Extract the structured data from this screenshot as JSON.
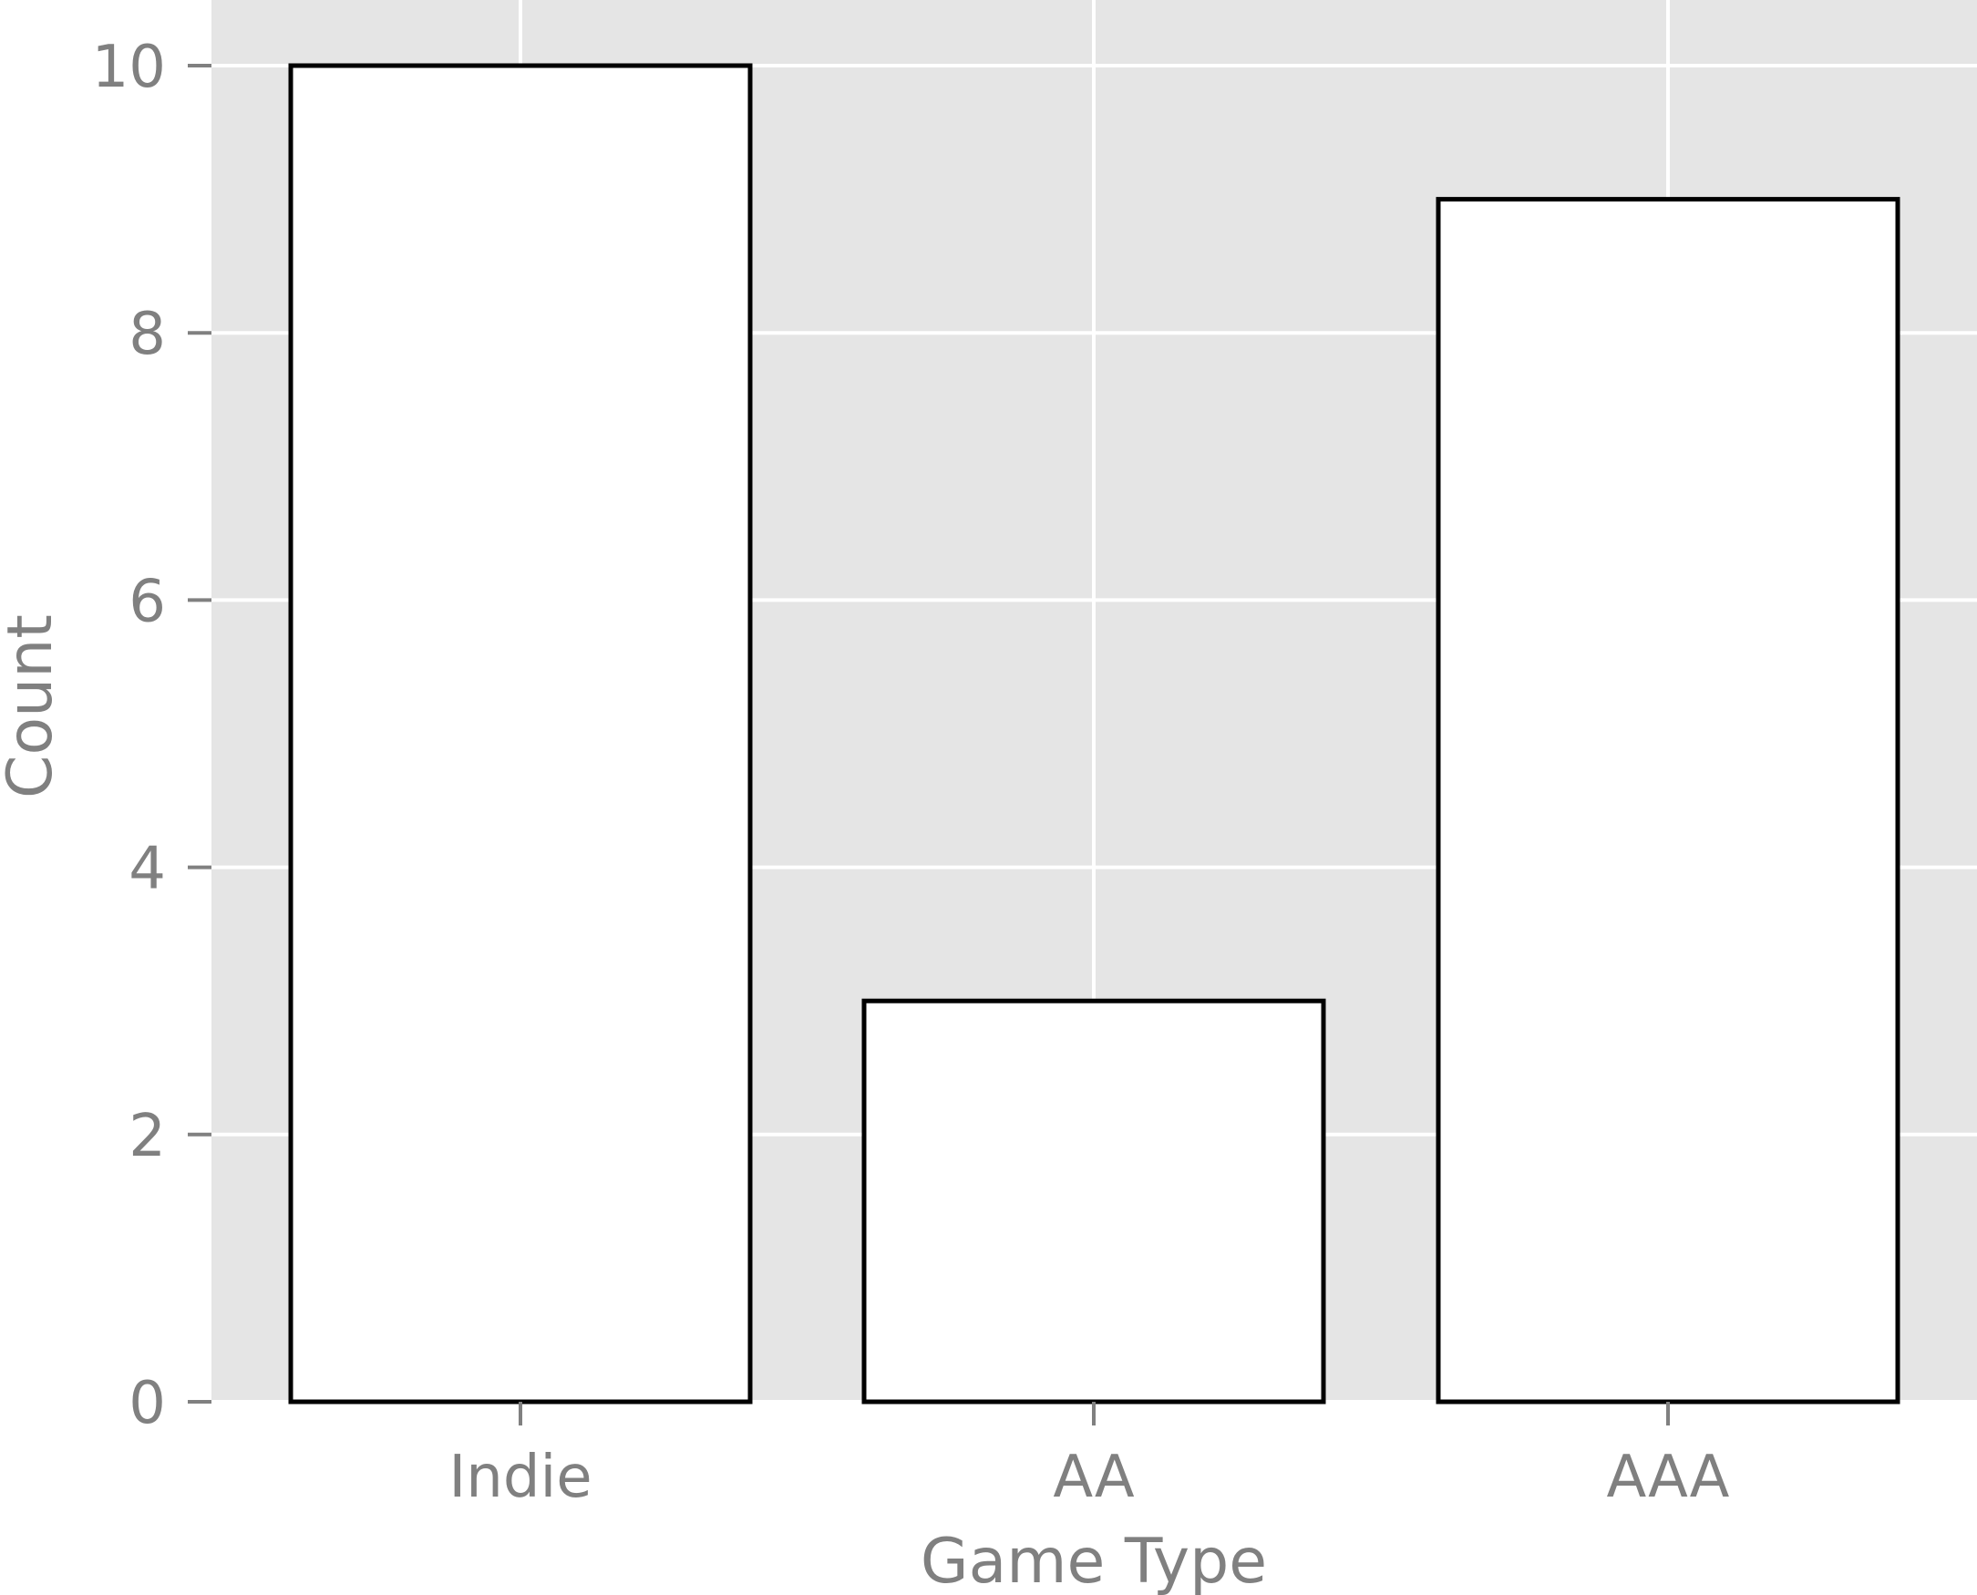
{
  "chart_data": {
    "type": "bar",
    "categories": [
      "Indie",
      "AA",
      "AAA"
    ],
    "values": [
      10,
      3,
      9
    ],
    "title": "",
    "xlabel": "Game Type",
    "ylabel": "Count",
    "ylim": [
      0,
      10
    ],
    "yticks": [
      0,
      2,
      4,
      6,
      8,
      10
    ],
    "grid": true,
    "legend": false,
    "colors": {
      "panel": "#e5e5e5",
      "grid": "#ffffff",
      "bar_fill": "#ffffff",
      "bar_edge": "#000000",
      "text": "#808080",
      "tick": "#808080"
    }
  }
}
